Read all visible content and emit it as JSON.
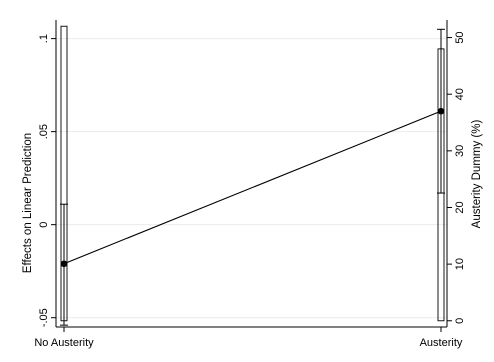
{
  "chart_data": {
    "type": "line",
    "title": "",
    "xlabel": "",
    "categories": [
      "No Austerity",
      "Austerity"
    ],
    "ylabel_left": "Effects on Linear Prediction",
    "ylabel_right": "Austerity Dummy (%)",
    "ylim_left": [
      -0.055,
      0.11
    ],
    "ylim_right": [
      -1.1,
      53.1
    ],
    "yticks_left": [
      -0.05,
      0,
      0.05,
      0.1
    ],
    "yticks_left_labels": [
      "-.05",
      "0",
      ".05",
      ".1"
    ],
    "yticks_right": [
      0,
      10,
      20,
      30,
      40,
      50
    ],
    "yticks_right_labels": [
      "0",
      "10",
      "20",
      "30",
      "40",
      "50"
    ],
    "grid": true,
    "series": [
      {
        "values": [
          -0.021,
          0.061
        ],
        "ci_low": [
          -0.054,
          0.017
        ],
        "ci_high": [
          0.011,
          0.105
        ]
      }
    ],
    "histogram": {
      "values_percent": [
        52,
        48
      ]
    }
  }
}
